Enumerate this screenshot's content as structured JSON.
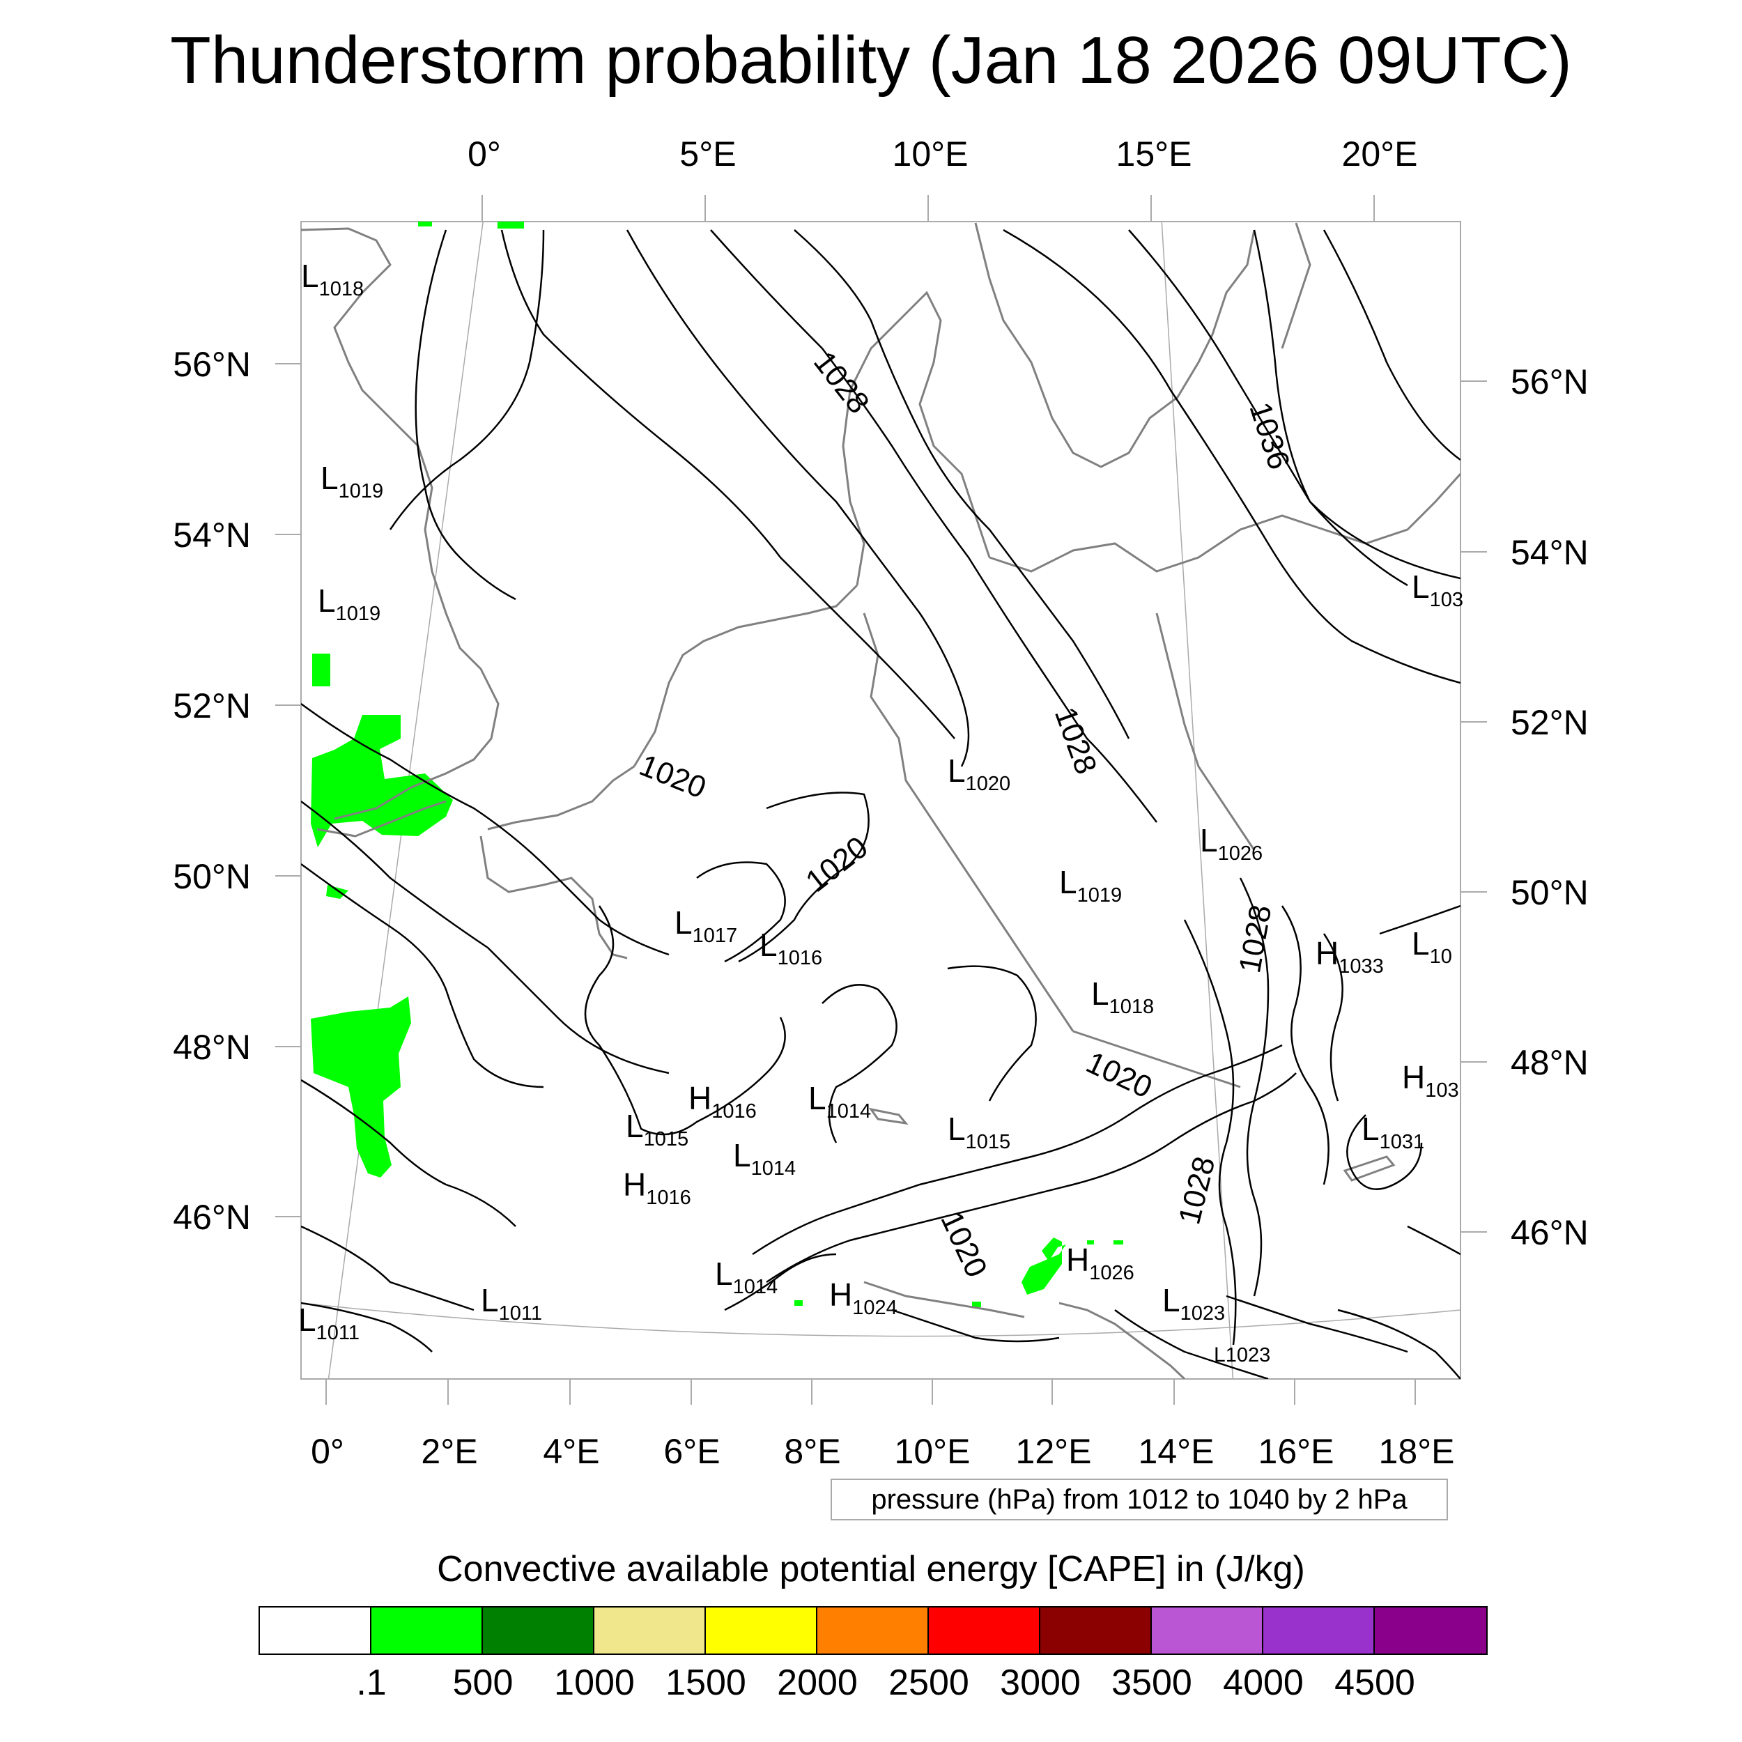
{
  "title": "Thunderstorm probability (Jan 18 2026 09UTC)",
  "map": {
    "top_lon_labels": [
      "0°",
      "5°E",
      "10°E",
      "15°E",
      "20°E"
    ],
    "bottom_lon_labels": [
      "0°",
      "2°E",
      "4°E",
      "6°E",
      "8°E",
      "10°E",
      "12°E",
      "14°E",
      "16°E",
      "18°E"
    ],
    "left_lat_labels": [
      "56°N",
      "54°N",
      "52°N",
      "50°N",
      "48°N",
      "46°N"
    ],
    "right_lat_labels": [
      "56°N",
      "54°N",
      "52°N",
      "50°N",
      "48°N",
      "46°N"
    ],
    "isobar_labels": [
      {
        "text": "1028"
      },
      {
        "text": "1036"
      },
      {
        "text": "1028"
      },
      {
        "text": "1020"
      },
      {
        "text": "1020"
      },
      {
        "text": "1028"
      },
      {
        "text": "1020"
      },
      {
        "text": "1028"
      },
      {
        "text": "1020"
      }
    ],
    "pressure_centers": [
      {
        "letter": "L",
        "value": "1018"
      },
      {
        "letter": "L",
        "value": "1019"
      },
      {
        "letter": "L",
        "value": "1019"
      },
      {
        "letter": "L",
        "value": "1020"
      },
      {
        "letter": "L",
        "value": "1026"
      },
      {
        "letter": "L",
        "value": "1019"
      },
      {
        "letter": "L",
        "value": "1017"
      },
      {
        "letter": "L",
        "value": "1016"
      },
      {
        "letter": "H",
        "value": "1033"
      },
      {
        "letter": "L",
        "value": "1018"
      },
      {
        "letter": "H",
        "value": "1016"
      },
      {
        "letter": "L",
        "value": "1014"
      },
      {
        "letter": "L",
        "value": "1015"
      },
      {
        "letter": "L",
        "value": "1015"
      },
      {
        "letter": "L",
        "value": "1014"
      },
      {
        "letter": "H",
        "value": "1016"
      },
      {
        "letter": "L",
        "value": "1031"
      },
      {
        "letter": "H",
        "value": "1026"
      },
      {
        "letter": "L",
        "value": "1014"
      },
      {
        "letter": "H",
        "value": "1024"
      },
      {
        "letter": "L",
        "value": "1023"
      },
      {
        "letter": "L",
        "value": "1011"
      },
      {
        "letter": "L",
        "value": "1011"
      },
      {
        "letter": "L",
        "value": "1023"
      },
      {
        "letter": "L",
        "value": "103"
      },
      {
        "letter": "L",
        "value": "10"
      },
      {
        "letter": "H",
        "value": "103"
      }
    ],
    "colors": {
      "land_outline": "#808080",
      "isobar": "#000000",
      "cape_fill": "#00ff00",
      "grid": "#aaaaaa"
    }
  },
  "pressure_note": "pressure (hPa) from 1012 to 1040 by 2 hPa",
  "colorbar": {
    "title": "Convective available potential energy [CAPE] in (J/kg)",
    "colors": [
      "#ffffff",
      "#00ff00",
      "#008000",
      "#f0e68c",
      "#ffff00",
      "#ff8000",
      "#ff0000",
      "#8b0000",
      "#ba55d3",
      "#9932cc",
      "#8b008b"
    ],
    "labels": [
      ".1",
      "500",
      "1000",
      "1500",
      "2000",
      "2500",
      "3000",
      "3500",
      "4000",
      "4500"
    ]
  }
}
